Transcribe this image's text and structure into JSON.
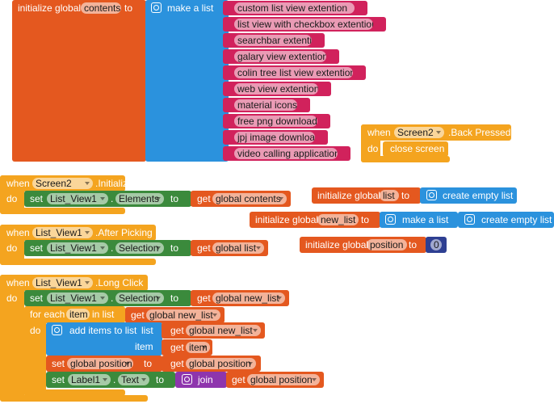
{
  "global_contents": {
    "keyword": "initialize global",
    "name": "contents",
    "to": "to",
    "list_block": "make a list",
    "items": [
      "custom list view extention",
      "list view with checkbox extention",
      "searchbar extention",
      "galary view extention",
      "colin tree list view extention",
      "web view extention",
      "material icons",
      "free png download",
      "jpj image download",
      "video calling application"
    ]
  },
  "screen2_back_pressed": {
    "when": "when",
    "component": "Screen2",
    "event": ".Back Pressed",
    "do": "do",
    "statement": "close screen"
  },
  "screen2_initialize": {
    "when": "when",
    "component": "Screen2",
    "event": ".Initialize",
    "do": "do",
    "set": "set",
    "set_component": "List_View1",
    "dot": ".",
    "property": "Elements",
    "to": "to",
    "get": "get",
    "variable": "global contents"
  },
  "global_list": {
    "keyword": "initialize global",
    "name": "list",
    "to": "to",
    "value": "create empty list"
  },
  "global_new_list": {
    "keyword": "initialize global",
    "name": "new_list",
    "to": "to",
    "value": "make a list",
    "item": "create empty list"
  },
  "global_position": {
    "keyword": "initialize global",
    "name": "position",
    "to": "to",
    "value": 0
  },
  "list_view1_after_picking": {
    "when": "when",
    "component": "List_View1",
    "event": ".After Picking",
    "do": "do",
    "set": "set",
    "set_component": "List_View1",
    "dot": ".",
    "property": "Selection",
    "to": "to",
    "get": "get",
    "variable": "global list"
  },
  "list_view1_long_click": {
    "when": "when",
    "component": "List_View1",
    "event": ".Long Click",
    "do": "do",
    "set": "set",
    "set_component": "List_View1",
    "dot": ".",
    "property": "Selection",
    "to": "to",
    "get": "get",
    "variable": "global new_list",
    "for_each": {
      "label": "for each",
      "item": "item",
      "in_list": "in list",
      "get": "get",
      "list": "global new_list",
      "do": "do",
      "add_items": {
        "label": "add items to list",
        "list_socket": "list",
        "item_socket": "item",
        "list_get": "get",
        "list": "global new_list",
        "item_get": "get",
        "item": "item"
      },
      "set_var": {
        "set": "set",
        "variable": "global position",
        "to": "to",
        "get": "get",
        "value": "global position"
      },
      "set_text": {
        "set": "set",
        "component": "Label1",
        "dot": ".",
        "property": "Text",
        "to": "to",
        "join": "join",
        "get": "get",
        "value": "global position"
      }
    }
  }
}
